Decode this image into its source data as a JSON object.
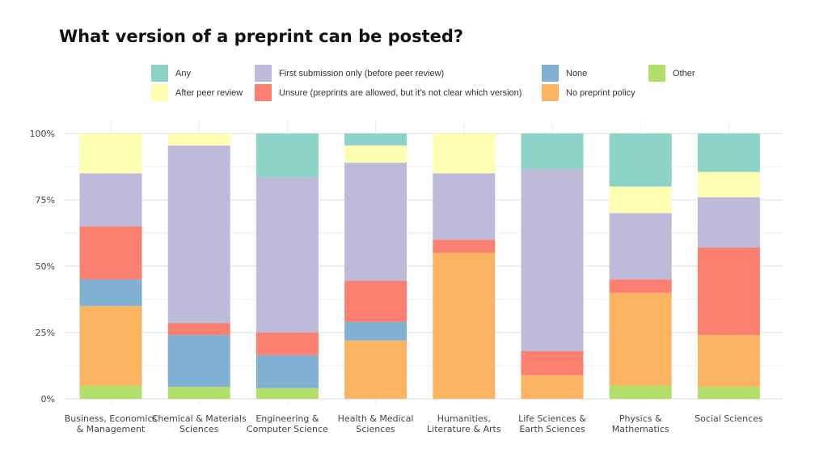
{
  "chart_data": {
    "type": "bar",
    "stacked": true,
    "title": "What version of a preprint can be posted?",
    "xlabel": "",
    "ylabel": "",
    "ylim": [
      0,
      100
    ],
    "yticks": [
      "0%",
      "25%",
      "50%",
      "75%",
      "100%"
    ],
    "grid": true,
    "legend_position": "top",
    "categories": [
      [
        "Business, Economics",
        "& Management"
      ],
      [
        "Chemical & Materials",
        "Sciences"
      ],
      [
        "Engineering &",
        "Computer Science"
      ],
      [
        "Health & Medical",
        "Sciences"
      ],
      [
        "Humanities,",
        "Literature & Arts"
      ],
      [
        "Life Sciences &",
        "Earth Sciences"
      ],
      [
        "Physics &",
        "Mathematics"
      ],
      [
        "Social Sciences"
      ]
    ],
    "series": [
      {
        "name": "Other",
        "color": "#b3de69",
        "values": [
          5,
          4.5,
          4,
          0,
          0,
          0,
          5,
          4.5
        ]
      },
      {
        "name": "No preprint policy",
        "color": "#fdb462",
        "values": [
          30,
          0,
          0,
          22,
          55,
          9,
          35,
          19.5
        ]
      },
      {
        "name": "None",
        "color": "#80b1d3",
        "values": [
          10,
          19.5,
          12.5,
          7,
          0,
          0,
          0,
          0
        ]
      },
      {
        "name": "Unsure (preprints are allowed, but it's not clear which version)",
        "color": "#fb8072",
        "values": [
          20,
          4.5,
          8.5,
          15.5,
          5,
          9,
          5,
          33
        ]
      },
      {
        "name": "First submission only (before peer review)",
        "color": "#bebada",
        "values": [
          20,
          67,
          58.5,
          44.5,
          25,
          68.5,
          25,
          19
        ]
      },
      {
        "name": "After peer review",
        "color": "#ffffb3",
        "values": [
          15,
          4.5,
          0,
          6.5,
          15,
          0,
          10,
          9.5
        ]
      },
      {
        "name": "Any",
        "color": "#8dd3c7",
        "values": [
          0,
          0,
          16.5,
          4.5,
          0,
          13.5,
          20,
          14.5
        ]
      }
    ]
  },
  "legend": [
    {
      "label": "Any",
      "color": "#8dd3c7"
    },
    {
      "label": "First submission only (before peer review)",
      "color": "#bebada"
    },
    {
      "label": "None",
      "color": "#80b1d3"
    },
    {
      "label": "Other",
      "color": "#b3de69"
    },
    {
      "label": "After peer review",
      "color": "#ffffb3"
    },
    {
      "label": "Unsure (preprints are allowed, but it's not clear which version)",
      "color": "#fb8072"
    },
    {
      "label": "No preprint policy",
      "color": "#fdb462"
    }
  ]
}
